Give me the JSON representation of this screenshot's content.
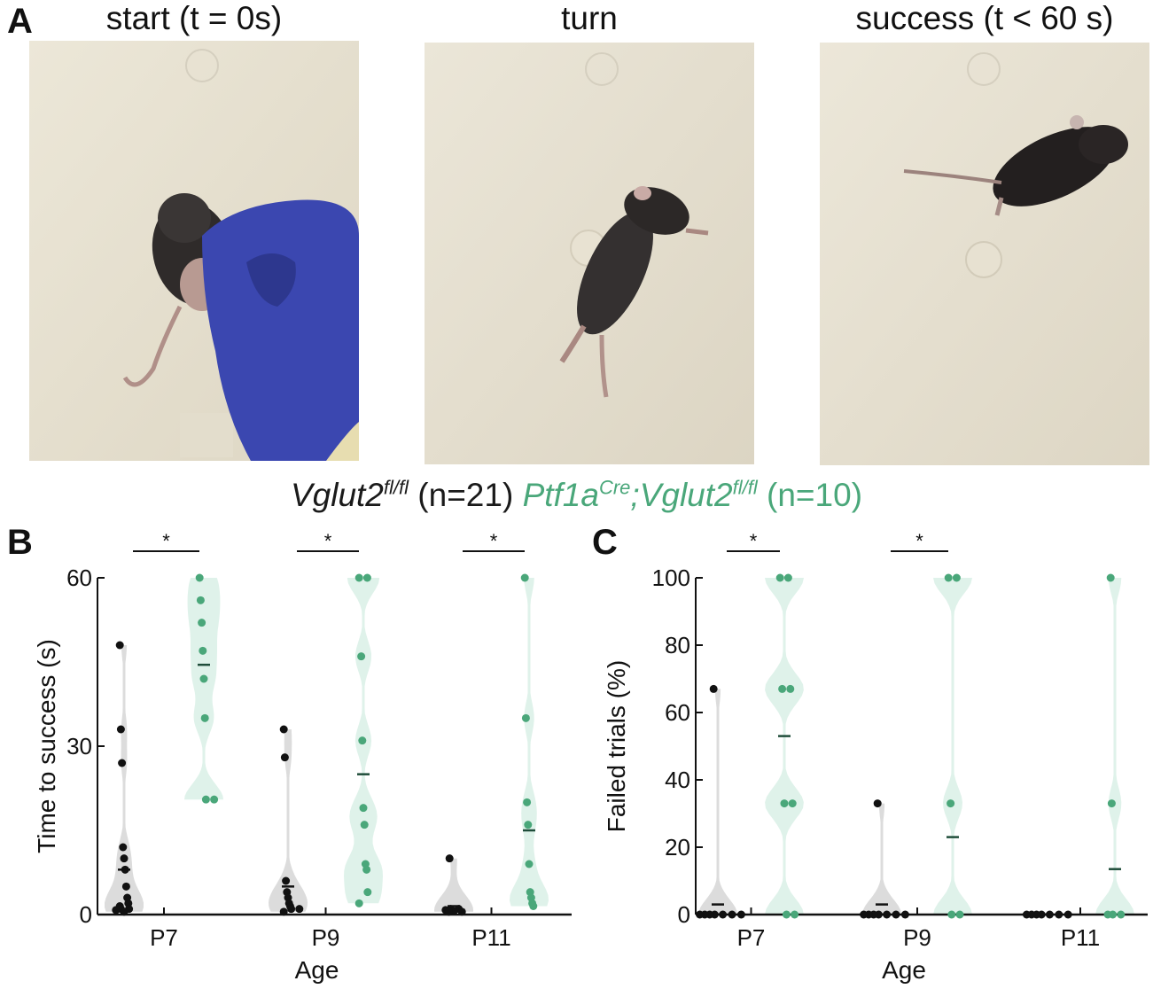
{
  "panel_labels": {
    "a": "A",
    "b": "B",
    "c": "C"
  },
  "photos": [
    {
      "title": "start (t = 0s)"
    },
    {
      "title": "turn"
    },
    {
      "title": "success (t < 60 s)"
    }
  ],
  "legend": {
    "ctrl_gene": "Vglut2",
    "ctrl_sup": "fl/fl",
    "ctrl_n": "(n=21)",
    "ko_gene1": "Ptf1a",
    "ko_sup1": "Cre",
    "ko_sep": ";",
    "ko_gene2": "Vglut2",
    "ko_sup2": "fl/fl",
    "ko_n": "(n=10)"
  },
  "colors": {
    "control": "#111111",
    "knockout": "#4aa77a",
    "ko_violin": "#dff2ea",
    "ctrl_violin": "#dcdcdc"
  },
  "chart_data": [
    {
      "type": "scatter",
      "panel": "B",
      "ylabel": "Time to success (s)",
      "xlabel": "Age",
      "ylim": [
        0,
        60
      ],
      "yticks": [
        "0",
        "30",
        "60"
      ],
      "categories": [
        "P7",
        "P9",
        "P11"
      ],
      "significance": [
        "*",
        "*",
        "*"
      ],
      "series": [
        {
          "group": "control",
          "values": [
            [
              48,
              33,
              27,
              12,
              10,
              8,
              5,
              3,
              2,
              1.5,
              1,
              1,
              0.8,
              0.5
            ],
            [
              33,
              28,
              6,
              4,
              3,
              2,
              1.5,
              1,
              1,
              0.5
            ],
            [
              10,
              1,
              1,
              0.8,
              0.6,
              0.5,
              0.5
            ]
          ],
          "means": [
            8,
            5,
            1.5
          ]
        },
        {
          "group": "knockout",
          "values": [
            [
              60,
              56,
              52,
              47,
              42,
              35,
              20.5,
              20.5
            ],
            [
              60,
              60,
              46,
              31,
              19,
              16,
              9,
              8,
              4,
              2
            ],
            [
              60,
              35,
              20,
              16,
              9,
              4,
              3,
              2,
              1.5
            ]
          ],
          "means": [
            44.5,
            25,
            15
          ]
        }
      ]
    },
    {
      "type": "scatter",
      "panel": "C",
      "ylabel": "Failed trials (%)",
      "xlabel": "Age",
      "ylim": [
        0,
        100
      ],
      "yticks": [
        "0",
        "20",
        "40",
        "60",
        "80",
        "100"
      ],
      "categories": [
        "P7",
        "P9",
        "P11"
      ],
      "significance": [
        "*",
        "*",
        ""
      ],
      "series": [
        {
          "group": "control",
          "values": [
            [
              67,
              0,
              0,
              0,
              0,
              0,
              0,
              0
            ],
            [
              33,
              0,
              0,
              0,
              0,
              0,
              0,
              0
            ],
            [
              0,
              0,
              0,
              0,
              0,
              0,
              0
            ]
          ],
          "means": [
            3,
            3,
            0
          ]
        },
        {
          "group": "knockout",
          "values": [
            [
              100,
              100,
              67,
              67,
              33,
              33,
              0,
              0
            ],
            [
              100,
              100,
              33,
              0,
              0
            ],
            [
              100,
              33,
              0,
              0,
              0
            ]
          ],
          "means": [
            53,
            23,
            13.5
          ]
        }
      ]
    }
  ]
}
